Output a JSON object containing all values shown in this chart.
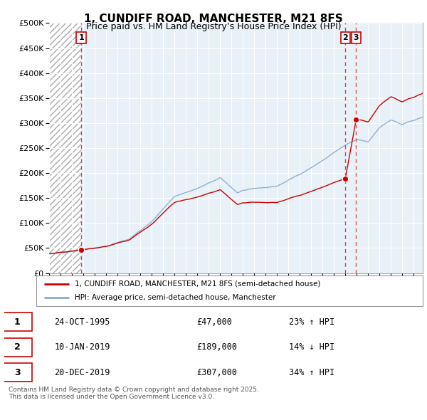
{
  "title_line1": "1, CUNDIFF ROAD, MANCHESTER, M21 8FS",
  "title_line2": "Price paid vs. HM Land Registry’s House Price Index (HPI)",
  "ylim": [
    0,
    500000
  ],
  "yticks": [
    0,
    50000,
    100000,
    150000,
    200000,
    250000,
    300000,
    350000,
    400000,
    450000,
    500000
  ],
  "ytick_labels": [
    "£0",
    "£50K",
    "£100K",
    "£150K",
    "£200K",
    "£250K",
    "£300K",
    "£350K",
    "£400K",
    "£450K",
    "£500K"
  ],
  "transactions": [
    {
      "label": "1",
      "date_num": 1995.82,
      "price": 47000
    },
    {
      "label": "2",
      "date_num": 2019.03,
      "price": 189000
    },
    {
      "label": "3",
      "date_num": 2019.97,
      "price": 307000
    }
  ],
  "table_rows": [
    {
      "num": "1",
      "date": "24-OCT-1995",
      "price": "£47,000",
      "change": "23% ↑ HPI"
    },
    {
      "num": "2",
      "date": "10-JAN-2019",
      "price": "£189,000",
      "change": "14% ↓ HPI"
    },
    {
      "num": "3",
      "date": "20-DEC-2019",
      "price": "£307,000",
      "change": "34% ↑ HPI"
    }
  ],
  "legend_line1": "1, CUNDIFF ROAD, MANCHESTER, M21 8FS (semi-detached house)",
  "legend_line2": "HPI: Average price, semi-detached house, Manchester",
  "footer": "Contains HM Land Registry data © Crown copyright and database right 2025.\nThis data is licensed under the Open Government Licence v3.0.",
  "line_color_property": "#cc0000",
  "line_color_hpi": "#88aacc",
  "vline_color": "#dd4444",
  "bg_chart": "#e8f0f8",
  "grid_color": "#ffffff",
  "hatch_edgecolor": "#aaaaaa",
  "xmin": 1993.0,
  "xmax": 2025.83,
  "prop_above_hpi_ratio": 1.23,
  "prop_above_hpi_ratio_after_t3": 1.34
}
